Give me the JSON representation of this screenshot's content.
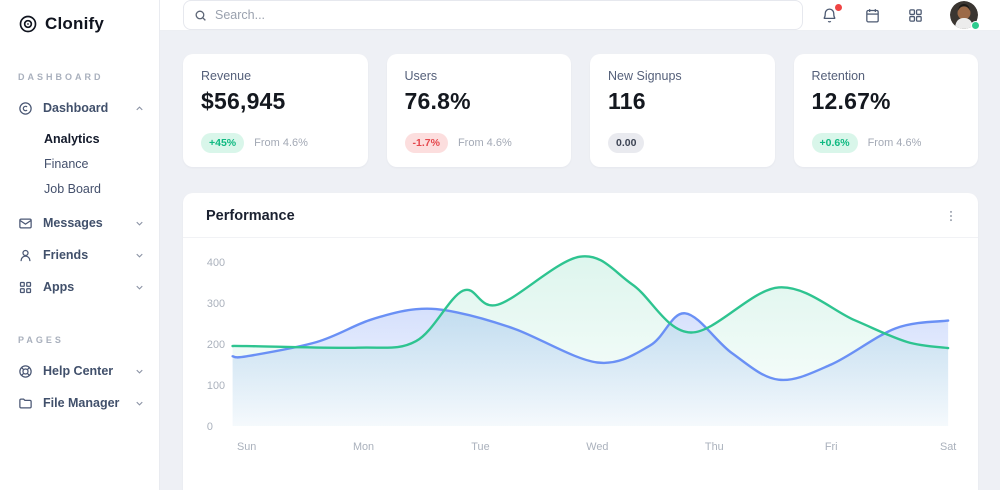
{
  "app": {
    "logo": "Clonify"
  },
  "sidebar": {
    "sections": {
      "dashboard": "DASHBOARD",
      "pages": "PAGES"
    },
    "items": [
      {
        "label": "Dashboard",
        "state": "expanded"
      },
      {
        "label": "Analytics",
        "state": "active"
      },
      {
        "label": "Finance"
      },
      {
        "label": "Job Board"
      },
      {
        "label": "Messages"
      },
      {
        "label": "Friends"
      },
      {
        "label": "Apps"
      },
      {
        "label": "Help Center"
      },
      {
        "label": "File Manager"
      }
    ]
  },
  "topbar": {
    "search_placeholder": "Search..."
  },
  "stats": {
    "cards": [
      {
        "label": "Revenue",
        "value": "$56,945",
        "badge": "+45%",
        "badge_type": "positive",
        "note": "From 4.6%"
      },
      {
        "label": "Users",
        "value": "76.8%",
        "badge": "-1.7%",
        "badge_type": "negative",
        "note": "From 4.6%"
      },
      {
        "label": "New Signups",
        "value": "116",
        "badge": "0.00",
        "badge_type": "neutral",
        "note": ""
      },
      {
        "label": "Retention",
        "value": "12.67%",
        "badge": "+0.6%",
        "badge_type": "positive",
        "note": "From 4.6%"
      }
    ]
  },
  "performance": {
    "title": "Performance"
  },
  "chart_data": {
    "type": "area",
    "title": "Performance",
    "categories": [
      "Sun",
      "Mon",
      "Tue",
      "Wed",
      "Thu",
      "Fri",
      "Sat"
    ],
    "y_ticks": [
      0,
      100,
      200,
      300,
      400
    ],
    "ylim": [
      0,
      450
    ],
    "grid": false,
    "legend": "none",
    "series": [
      {
        "name": "blue",
        "color": "#6a90f5",
        "fill_opacity_top": 0.28,
        "fill_opacity_bottom": 0.04,
        "points": [
          [
            0,
            170
          ],
          [
            0.6,
            205
          ],
          [
            1.05,
            258
          ],
          [
            1.45,
            285
          ],
          [
            1.8,
            277
          ],
          [
            2.3,
            236
          ],
          [
            3.0,
            155
          ],
          [
            3.45,
            196
          ],
          [
            3.75,
            275
          ],
          [
            4.15,
            178
          ],
          [
            4.55,
            113
          ],
          [
            5.0,
            150
          ],
          [
            5.55,
            238
          ],
          [
            6,
            257
          ]
        ]
      },
      {
        "name": "green",
        "color": "#2ec490",
        "fill_opacity_top": 0.16,
        "fill_opacity_bottom": 0.02,
        "points": [
          [
            0,
            195
          ],
          [
            0.95,
            191
          ],
          [
            1.45,
            207
          ],
          [
            1.85,
            330
          ],
          [
            2.15,
            296
          ],
          [
            2.85,
            413
          ],
          [
            3.3,
            345
          ],
          [
            3.8,
            228
          ],
          [
            4.55,
            338
          ],
          [
            5.2,
            258
          ],
          [
            5.65,
            205
          ],
          [
            6,
            190
          ]
        ]
      }
    ]
  },
  "colors": {
    "accent_green": "#2ec490",
    "accent_blue": "#6a90f5",
    "positive_bg": "#d9f6ea",
    "positive_text": "#0fb981",
    "negative_bg": "#fcdede",
    "negative_text": "#e5484d",
    "neutral_bg": "#e9eaef",
    "neutral_text": "#3d4454",
    "notification_dot": "#ef4444",
    "online_dot": "#2ecc8e"
  }
}
